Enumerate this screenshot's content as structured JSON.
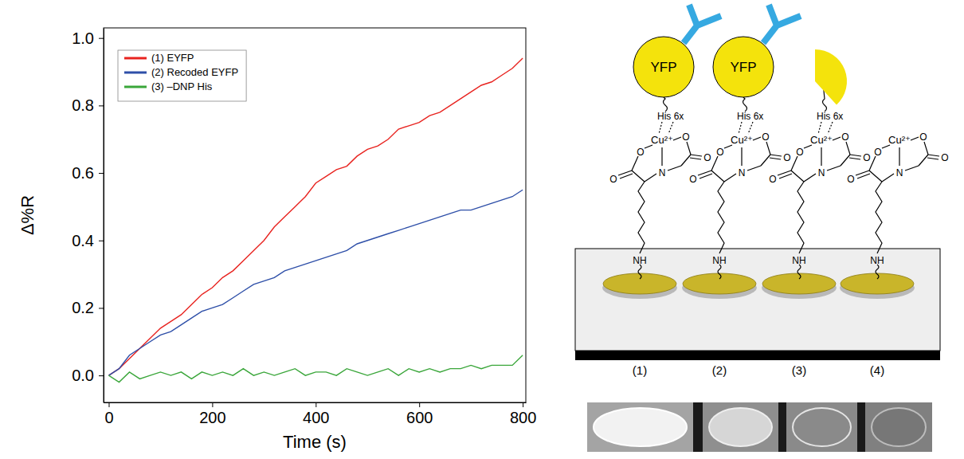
{
  "chart_data": {
    "type": "line",
    "x_label": "Time (s)",
    "y_label": "Δ%R",
    "x": [
      0,
      20,
      40,
      60,
      80,
      100,
      120,
      140,
      160,
      180,
      200,
      220,
      240,
      260,
      280,
      300,
      320,
      340,
      360,
      380,
      400,
      420,
      440,
      460,
      480,
      500,
      520,
      540,
      560,
      580,
      600,
      620,
      640,
      660,
      680,
      700,
      720,
      740,
      760,
      780,
      800
    ],
    "series": [
      {
        "name": "(1) EYFP",
        "color": "#e8231f",
        "values": [
          0,
          0.02,
          0.05,
          0.08,
          0.11,
          0.14,
          0.16,
          0.18,
          0.21,
          0.24,
          0.26,
          0.29,
          0.31,
          0.34,
          0.37,
          0.4,
          0.44,
          0.47,
          0.5,
          0.53,
          0.57,
          0.59,
          0.61,
          0.62,
          0.65,
          0.67,
          0.68,
          0.7,
          0.73,
          0.74,
          0.75,
          0.77,
          0.78,
          0.8,
          0.82,
          0.84,
          0.86,
          0.87,
          0.89,
          0.91,
          0.94
        ]
      },
      {
        "name": "(2) Recoded EYFP",
        "color": "#2e4fa8",
        "values": [
          0,
          0.02,
          0.06,
          0.08,
          0.1,
          0.12,
          0.13,
          0.15,
          0.17,
          0.19,
          0.2,
          0.21,
          0.23,
          0.25,
          0.27,
          0.28,
          0.29,
          0.31,
          0.32,
          0.33,
          0.34,
          0.35,
          0.36,
          0.37,
          0.39,
          0.4,
          0.41,
          0.42,
          0.43,
          0.44,
          0.45,
          0.46,
          0.47,
          0.48,
          0.49,
          0.49,
          0.5,
          0.51,
          0.52,
          0.53,
          0.55
        ]
      },
      {
        "name": "(3) –DNP His",
        "color": "#3aa63a",
        "values": [
          0,
          -0.02,
          0.01,
          -0.01,
          0,
          0.01,
          0,
          0.01,
          -0.01,
          0.01,
          0,
          0.01,
          0,
          0.02,
          0,
          0.01,
          0,
          0.01,
          0.02,
          0,
          0.01,
          0.01,
          0,
          0.02,
          0.01,
          0,
          0.01,
          0.02,
          0,
          0.02,
          0.01,
          0.02,
          0.01,
          0.02,
          0.02,
          0.03,
          0.02,
          0.03,
          0.03,
          0.03,
          0.06
        ]
      }
    ],
    "xlim": [
      -10,
      806
    ],
    "xticks": [
      0,
      200,
      400,
      600,
      800
    ],
    "ylim": [
      -0.08,
      1.03
    ],
    "yticks": [
      {
        "value": 0,
        "label": "0.0"
      },
      0.2,
      0.4,
      0.6,
      0.8,
      {
        "value": 1,
        "label": "1.0"
      }
    ],
    "legend": "upper left"
  },
  "diagram": {
    "protein": "YFP",
    "tag": "His 6x",
    "metal": "Cu²⁺",
    "nitrogen": "N",
    "oxygen": "O",
    "amine": "NH",
    "labels": [
      "(1)",
      "(2)",
      "(3)",
      "(4)"
    ]
  }
}
